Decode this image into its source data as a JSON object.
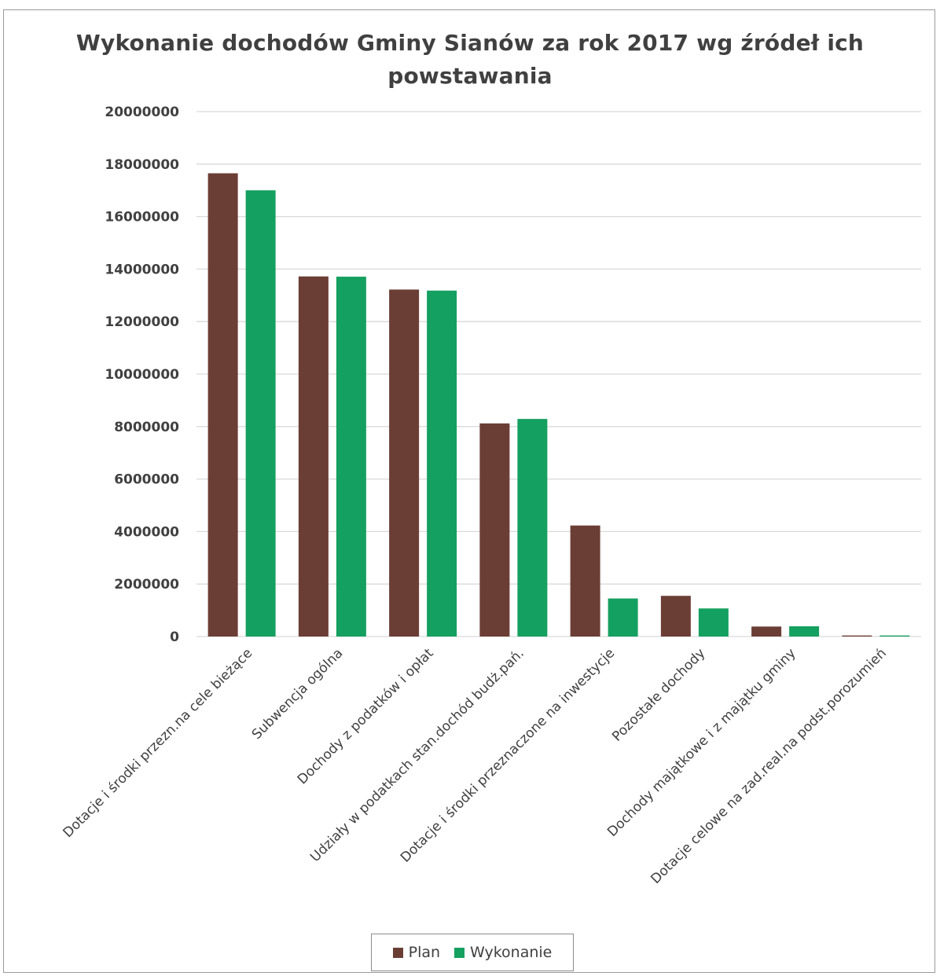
{
  "chart_data": {
    "type": "bar",
    "title_lines": [
      "Wykonanie dochodów Gminy Sianów za rok 2017 wg źródeł ich",
      "powstawania"
    ],
    "xlabel": "",
    "ylabel": "",
    "ylim": [
      0,
      20000000
    ],
    "yticks": [
      0,
      2000000,
      4000000,
      6000000,
      8000000,
      10000000,
      12000000,
      14000000,
      16000000,
      18000000,
      20000000
    ],
    "grid": true,
    "legend_position": "bottom",
    "categories": [
      "Dotacje i środki przezn.na cele bieżące",
      "Subwencja ogólna",
      "Dochody z podatków i opłat",
      "Udziały w podatkach stan.dochód budż.pań.",
      "Dotacje i środki przeznaczone na inwestycje",
      "Pozostałe dochody",
      "Dochody majątkowe i z majątku gminy",
      "Dotacje celowe na zad.real.na podst.porozumień"
    ],
    "series": [
      {
        "name": "Plan",
        "color": "#6b3e35",
        "values": [
          17650000,
          13720000,
          13220000,
          8120000,
          4230000,
          1550000,
          380000,
          40000
        ]
      },
      {
        "name": "Wykonanie",
        "color": "#14a060",
        "values": [
          17000000,
          13710000,
          13180000,
          8290000,
          1450000,
          1070000,
          390000,
          40000
        ]
      }
    ]
  }
}
